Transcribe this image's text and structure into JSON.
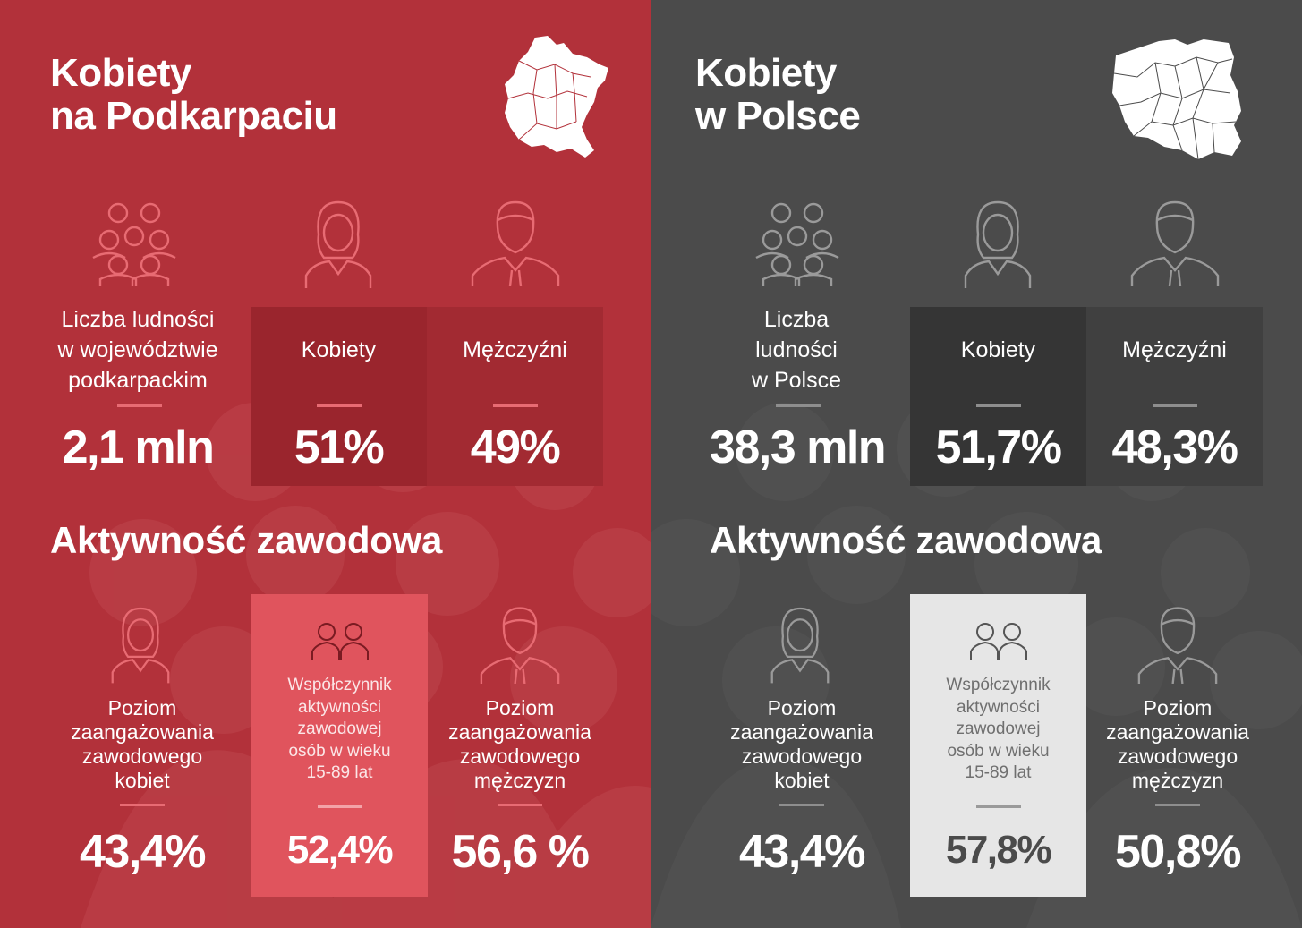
{
  "colors": {
    "left_bg": "#b2313a",
    "right_bg": "#4b4b4b",
    "left_accent": "#e86b73",
    "right_accent": "#8e8e8e"
  },
  "left": {
    "title_line1": "Kobiety",
    "title_line2": "na Podkarpaciu",
    "map_icon": "podkarpackie-map-icon",
    "population_label": [
      "Liczba ludności",
      "w województwie",
      "podkarpackim"
    ],
    "population_value": "2,1 mln",
    "women_label": "Kobiety",
    "women_value": "51%",
    "men_label": "Mężczyźni",
    "men_value": "49%",
    "activity_title": "Aktywność zawodowa",
    "women_activity_label": [
      "Poziom",
      "zaangażowania",
      "zawodowego",
      "kobiet"
    ],
    "women_activity_value": "43,4%",
    "rate_label": [
      "Współczynnik",
      "aktywności",
      "zawodowej",
      "osób w wieku",
      "15-89 lat"
    ],
    "rate_value": "52,4%",
    "men_activity_label": [
      "Poziom",
      "zaangażowania",
      "zawodowego",
      "mężczyzn"
    ],
    "men_activity_value": "56,6 %"
  },
  "right": {
    "title_line1": "Kobiety",
    "title_line2": "w Polsce",
    "map_icon": "poland-map-icon",
    "population_label": [
      "Liczba",
      "ludności",
      "w Polsce"
    ],
    "population_value": "38,3 mln",
    "women_label": "Kobiety",
    "women_value": "51,7%",
    "men_label": "Mężczyźni",
    "men_value": "48,3%",
    "activity_title": "Aktywność zawodowa",
    "women_activity_label": [
      "Poziom",
      "zaangażowania",
      "zawodowego",
      "kobiet"
    ],
    "women_activity_value": "43,4%",
    "rate_label": [
      "Współczynnik",
      "aktywności",
      "zawodowej",
      "osób w wieku",
      "15-89 lat"
    ],
    "rate_value": "57,8%",
    "men_activity_label": [
      "Poziom",
      "zaangażowania",
      "zawodowego",
      "mężczyzn"
    ],
    "men_activity_value": "50,8%"
  }
}
